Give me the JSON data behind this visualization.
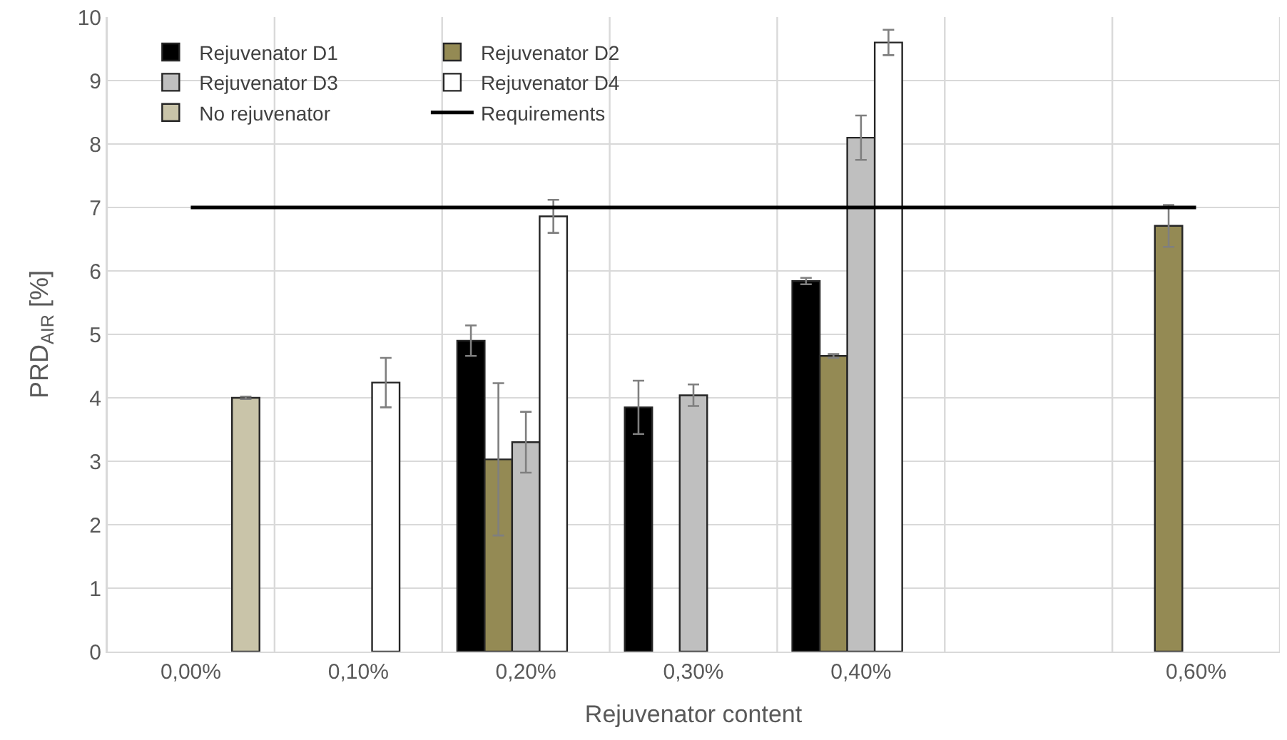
{
  "chart_data": {
    "type": "bar",
    "xlabel": "Rejuvenator content",
    "ylabel": "PRD$_{AIR}$ [%]",
    "categories": [
      "0,00%",
      "0,10%",
      "0,20%",
      "0,30%",
      "0,40%",
      null,
      "0,60%"
    ],
    "series": [
      {
        "name": "Rejuvenator D1",
        "color": "#000000",
        "values": [
          null,
          null,
          4.9,
          3.85,
          5.84,
          null,
          null
        ],
        "errors": [
          null,
          null,
          0.24,
          0.42,
          0.05,
          null,
          null
        ]
      },
      {
        "name": "Rejuvenator D2",
        "color": "#948a54",
        "values": [
          null,
          null,
          3.03,
          null,
          4.66,
          null,
          6.71
        ],
        "errors": [
          null,
          null,
          1.2,
          null,
          0.03,
          null,
          0.33
        ]
      },
      {
        "name": "Rejuvenator D3",
        "color": "#bfbfbf",
        "values": [
          null,
          null,
          3.3,
          4.04,
          8.1,
          null,
          null
        ],
        "errors": [
          null,
          null,
          0.48,
          0.17,
          0.35,
          null,
          null
        ]
      },
      {
        "name": "Rejuvenator D4",
        "color": "#ffffff",
        "values": [
          null,
          4.24,
          6.86,
          null,
          9.6,
          null,
          null
        ],
        "errors": [
          null,
          0.39,
          0.26,
          null,
          0.2,
          null,
          null
        ]
      },
      {
        "name": "No rejuvenator",
        "color": "#c9c4a9",
        "values": [
          4.0,
          null,
          null,
          null,
          null,
          null,
          null
        ],
        "errors": [
          0.02,
          null,
          null,
          null,
          null,
          null,
          null
        ]
      },
      {
        "name": "Requirements",
        "type": "line",
        "color": "#000000",
        "values": [
          7,
          7,
          7,
          7,
          7,
          7,
          7
        ]
      }
    ],
    "ylim": [
      0,
      10
    ],
    "yticks": [
      0,
      1,
      2,
      3,
      4,
      5,
      6,
      7,
      8,
      9,
      10
    ],
    "grid": true,
    "legend": "top left",
    "marker": "none"
  }
}
